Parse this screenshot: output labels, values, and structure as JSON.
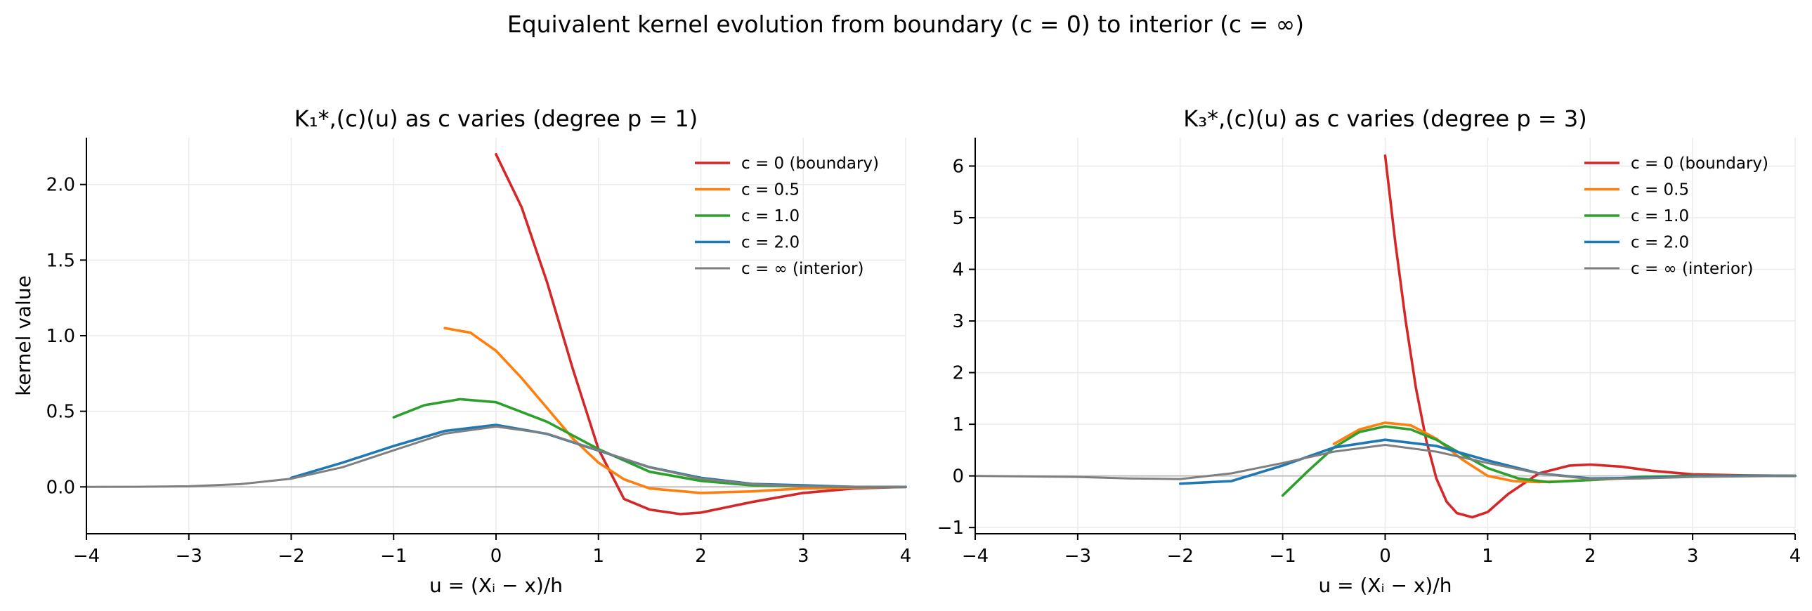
{
  "suptitle": "Equivalent kernel evolution from boundary (c = 0) to interior (c = ∞)",
  "chart_data": [
    {
      "type": "line",
      "title": "K₁*,(c)(u) as c varies   (degree p = 1)",
      "xlabel": "u = (Xᵢ − x)/h",
      "ylabel": "kernel value",
      "xlim": [
        -4,
        4
      ],
      "ylim": [
        -0.31,
        2.31
      ],
      "xticks": [
        -4,
        -3,
        -2,
        -1,
        0,
        1,
        2,
        3,
        4
      ],
      "yticks": [
        0.0,
        0.5,
        1.0,
        1.5,
        2.0
      ],
      "ytick_labels": [
        "0.0",
        "0.5",
        "1.0",
        "1.5",
        "2.0"
      ],
      "grid": true,
      "legend": "top-right",
      "series": [
        {
          "name": "c = 0 (boundary)",
          "color": "#d62728",
          "x": [
            0,
            0.25,
            0.5,
            0.75,
            1.0,
            1.25,
            1.5,
            1.8,
            2.0,
            2.5,
            3.0,
            3.5,
            4.0
          ],
          "y": [
            2.2,
            1.85,
            1.35,
            0.78,
            0.25,
            -0.08,
            -0.15,
            -0.18,
            -0.17,
            -0.1,
            -0.04,
            -0.01,
            0.0
          ]
        },
        {
          "name": "c = 0.5",
          "color": "#ff7f0e",
          "x": [
            -0.5,
            -0.25,
            0,
            0.25,
            0.5,
            0.75,
            1.0,
            1.25,
            1.5,
            2.0,
            2.5,
            3.0,
            4.0
          ],
          "y": [
            1.05,
            1.02,
            0.9,
            0.72,
            0.52,
            0.32,
            0.16,
            0.05,
            -0.01,
            -0.04,
            -0.03,
            -0.01,
            0.0
          ]
        },
        {
          "name": "c = 1.0",
          "color": "#2ca02c",
          "x": [
            -1.0,
            -0.7,
            -0.35,
            0,
            0.5,
            1.0,
            1.5,
            2.0,
            2.5,
            3.0,
            3.5,
            4.0
          ],
          "y": [
            0.46,
            0.54,
            0.58,
            0.56,
            0.43,
            0.25,
            0.1,
            0.04,
            0.01,
            0.005,
            0.0,
            0.0
          ]
        },
        {
          "name": "c = 2.0",
          "color": "#1f77b4",
          "x": [
            -2.0,
            -1.5,
            -1.0,
            -0.5,
            0,
            0.5,
            1.0,
            1.5,
            2.0,
            2.5,
            3.0,
            3.5,
            4.0
          ],
          "y": [
            0.06,
            0.16,
            0.27,
            0.37,
            0.41,
            0.35,
            0.24,
            0.13,
            0.06,
            0.02,
            0.01,
            0.0,
            0.0
          ]
        },
        {
          "name": "c = ∞ (interior)",
          "color": "#7f7f7f",
          "x": [
            -4.0,
            -3.5,
            -3.0,
            -2.5,
            -2.0,
            -1.5,
            -1.0,
            -0.5,
            0,
            0.5,
            1.0,
            1.5,
            2.0,
            2.5,
            3.0,
            3.5,
            4.0
          ],
          "y": [
            0.0,
            0.001,
            0.004,
            0.018,
            0.054,
            0.13,
            0.242,
            0.352,
            0.399,
            0.352,
            0.242,
            0.13,
            0.054,
            0.018,
            0.004,
            0.001,
            0.0
          ]
        }
      ]
    },
    {
      "type": "line",
      "title": "K₃*,(c)(u) as c varies   (degree p = 3)",
      "xlabel": "u = (Xᵢ − x)/h",
      "ylabel": "",
      "xlim": [
        -4,
        4
      ],
      "ylim": [
        -1.12,
        6.55
      ],
      "xticks": [
        -4,
        -3,
        -2,
        -1,
        0,
        1,
        2,
        3,
        4
      ],
      "yticks": [
        -1,
        0,
        1,
        2,
        3,
        4,
        5,
        6
      ],
      "ytick_labels": [
        "−1",
        "0",
        "1",
        "2",
        "3",
        "4",
        "5",
        "6"
      ],
      "grid": true,
      "legend": "top-right",
      "series": [
        {
          "name": "c = 0 (boundary)",
          "color": "#d62728",
          "x": [
            0,
            0.1,
            0.2,
            0.3,
            0.4,
            0.5,
            0.6,
            0.7,
            0.85,
            1.0,
            1.2,
            1.5,
            1.8,
            2.0,
            2.3,
            2.6,
            3.0,
            3.5,
            4.0
          ],
          "y": [
            6.2,
            4.5,
            3.0,
            1.7,
            0.7,
            -0.05,
            -0.5,
            -0.72,
            -0.8,
            -0.7,
            -0.35,
            0.05,
            0.2,
            0.22,
            0.18,
            0.1,
            0.03,
            0.01,
            0.0
          ]
        },
        {
          "name": "c = 0.5",
          "color": "#ff7f0e",
          "x": [
            -0.5,
            -0.25,
            0,
            0.25,
            0.5,
            0.75,
            1.0,
            1.25,
            1.5,
            2.0,
            2.5,
            3.0,
            4.0
          ],
          "y": [
            0.62,
            0.9,
            1.03,
            0.98,
            0.72,
            0.32,
            0.0,
            -0.1,
            -0.12,
            -0.08,
            -0.03,
            0.0,
            0.0
          ]
        },
        {
          "name": "c = 1.0",
          "color": "#2ca02c",
          "x": [
            -1.0,
            -0.75,
            -0.5,
            -0.25,
            0,
            0.25,
            0.5,
            0.75,
            1.0,
            1.3,
            1.6,
            2.0,
            2.5,
            3.0,
            3.5,
            4.0
          ],
          "y": [
            -0.38,
            0.1,
            0.55,
            0.85,
            0.96,
            0.9,
            0.7,
            0.42,
            0.15,
            -0.05,
            -0.12,
            -0.08,
            -0.02,
            0.0,
            0.0,
            0.0
          ]
        },
        {
          "name": "c = 2.0",
          "color": "#1f77b4",
          "x": [
            -2.0,
            -1.5,
            -1.0,
            -0.5,
            0,
            0.5,
            1.0,
            1.5,
            2.0,
            2.5,
            3.0,
            3.5,
            4.0
          ],
          "y": [
            -0.15,
            -0.1,
            0.2,
            0.55,
            0.7,
            0.58,
            0.3,
            0.05,
            -0.05,
            -0.04,
            -0.01,
            0.0,
            0.0
          ]
        },
        {
          "name": "c = ∞ (interior)",
          "color": "#7f7f7f",
          "x": [
            -4.0,
            -3.0,
            -2.5,
            -2.0,
            -1.5,
            -1.0,
            -0.5,
            0,
            0.5,
            1.0,
            1.5,
            2.0,
            2.5,
            3.0,
            4.0
          ],
          "y": [
            0.0,
            -0.02,
            -0.05,
            -0.06,
            0.05,
            0.25,
            0.47,
            0.6,
            0.47,
            0.25,
            0.05,
            -0.06,
            -0.05,
            -0.02,
            0.0
          ]
        }
      ]
    }
  ]
}
